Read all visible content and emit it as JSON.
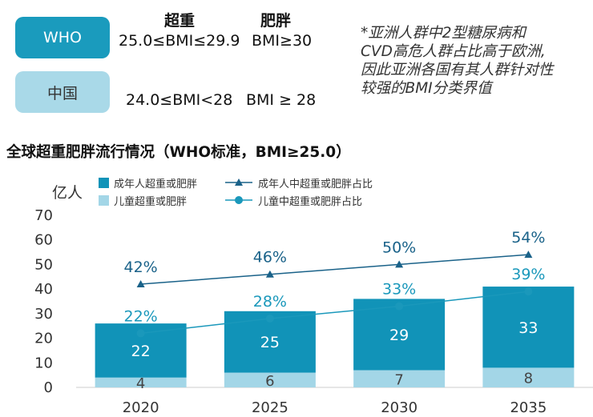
{
  "criteria": {
    "col_overweight": "超重",
    "col_obese": "肥胖",
    "who": {
      "label": "WHO",
      "overweight": "25.0≤BMI≤29.9",
      "obese": "BMI≥30"
    },
    "china": {
      "label": "中国",
      "overweight": "24.0≤BMI<28",
      "obese": "BMI ≥ 28"
    }
  },
  "note": {
    "line1": "*亚洲人群中2型糖尿病和",
    "line2": "CVD高危人群占比高于欧洲,",
    "line3": "因此亚洲各国有其人群针对性",
    "line4": "较强的BMI分类界值"
  },
  "colors": {
    "adult_bar": "#1193b8",
    "child_bar": "#a3d6e7",
    "adult_line": "#1a6289",
    "child_line": "#1a98bb",
    "axis_text": "#333333"
  },
  "chart_data": {
    "type": "bar",
    "title": "全球超重肥胖流行情况（WHO标准，BMI≥25.0）",
    "ylabel": "亿人",
    "xlabel": "",
    "ylim": [
      0,
      70
    ],
    "yticks": [
      0,
      10,
      20,
      30,
      40,
      50,
      60,
      70
    ],
    "categories": [
      "2020",
      "2025",
      "2030",
      "2035"
    ],
    "series": [
      {
        "name": "成年人超重或肥胖",
        "kind": "bar",
        "values": [
          22,
          25,
          29,
          33
        ]
      },
      {
        "name": "儿童超重或肥胖",
        "kind": "bar",
        "values": [
          4,
          6,
          7,
          8
        ]
      },
      {
        "name": "成年人中超重或肥胖占比",
        "kind": "line",
        "marker": "triangle",
        "values": [
          42,
          46,
          50,
          54
        ],
        "labels": [
          "42%",
          "46%",
          "50%",
          "54%"
        ]
      },
      {
        "name": "儿童中超重或肥胖占比",
        "kind": "line",
        "marker": "circle",
        "values": [
          22,
          28,
          33,
          39
        ],
        "labels": [
          "22%",
          "28%",
          "33%",
          "39%"
        ]
      }
    ],
    "legend": [
      "成年人超重或肥胖",
      "儿童超重或肥胖",
      "成年人中超重或肥胖占比",
      "儿童中超重或肥胖占比"
    ]
  }
}
